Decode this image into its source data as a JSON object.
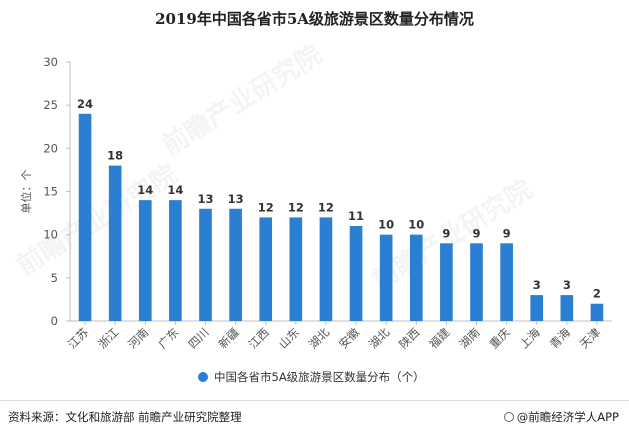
{
  "title": "2019年中国各省市5A级旅游景区数量分布情况",
  "watermark": "前瞻产业研究院",
  "footer": {
    "source": "资料来源：文化和旅游部 前瞻产业研究院整理",
    "brand": "@前瞻经济学人APP"
  },
  "colors": {
    "bar": "#2b7fd2",
    "axis": "#bfbfbf",
    "text": "#555555"
  },
  "chart_data": {
    "type": "bar",
    "title": "2019年中国各省市5A级旅游景区数量分布情况",
    "ylabel": "单位：个",
    "xlabel": "",
    "ylim": [
      0,
      30
    ],
    "yticks": [
      0,
      5,
      10,
      15,
      20,
      25,
      30
    ],
    "grid": false,
    "legend_position": "bottom",
    "categories": [
      "江苏",
      "浙江",
      "河南",
      "广东",
      "四川",
      "新疆",
      "江西",
      "山东",
      "湖北",
      "安徽",
      "湖北",
      "陕西",
      "福建",
      "湖南",
      "重庆",
      "上海",
      "青海",
      "天津"
    ],
    "series": [
      {
        "name": "中国各省市5A级旅游景区数量分布（个）",
        "values": [
          24,
          18,
          14,
          14,
          13,
          13,
          12,
          12,
          12,
          11,
          10,
          10,
          9,
          9,
          9,
          3,
          3,
          2
        ]
      }
    ]
  }
}
